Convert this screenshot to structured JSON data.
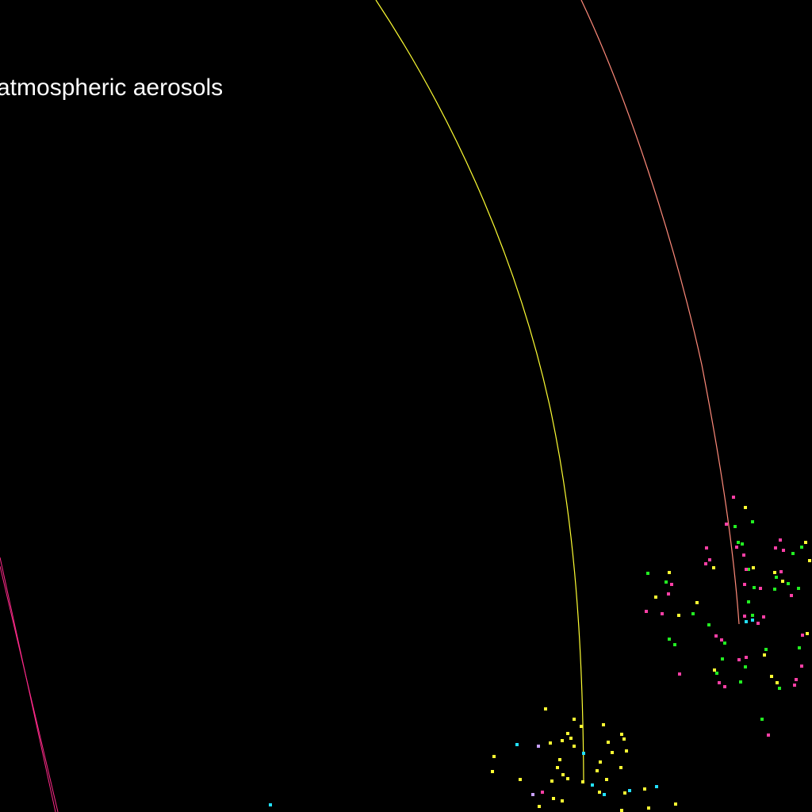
{
  "scene": {
    "label": "atmospheric aerosols",
    "background_color": "#000000",
    "colors": {
      "yellow": "#ffff33",
      "pink": "#ff3fa6",
      "green": "#22ee22",
      "cyan": "#22e0ff",
      "lavender": "#c8a0ff",
      "salmon": "#ff8a7a",
      "magenta": "#ff2a8a"
    }
  }
}
